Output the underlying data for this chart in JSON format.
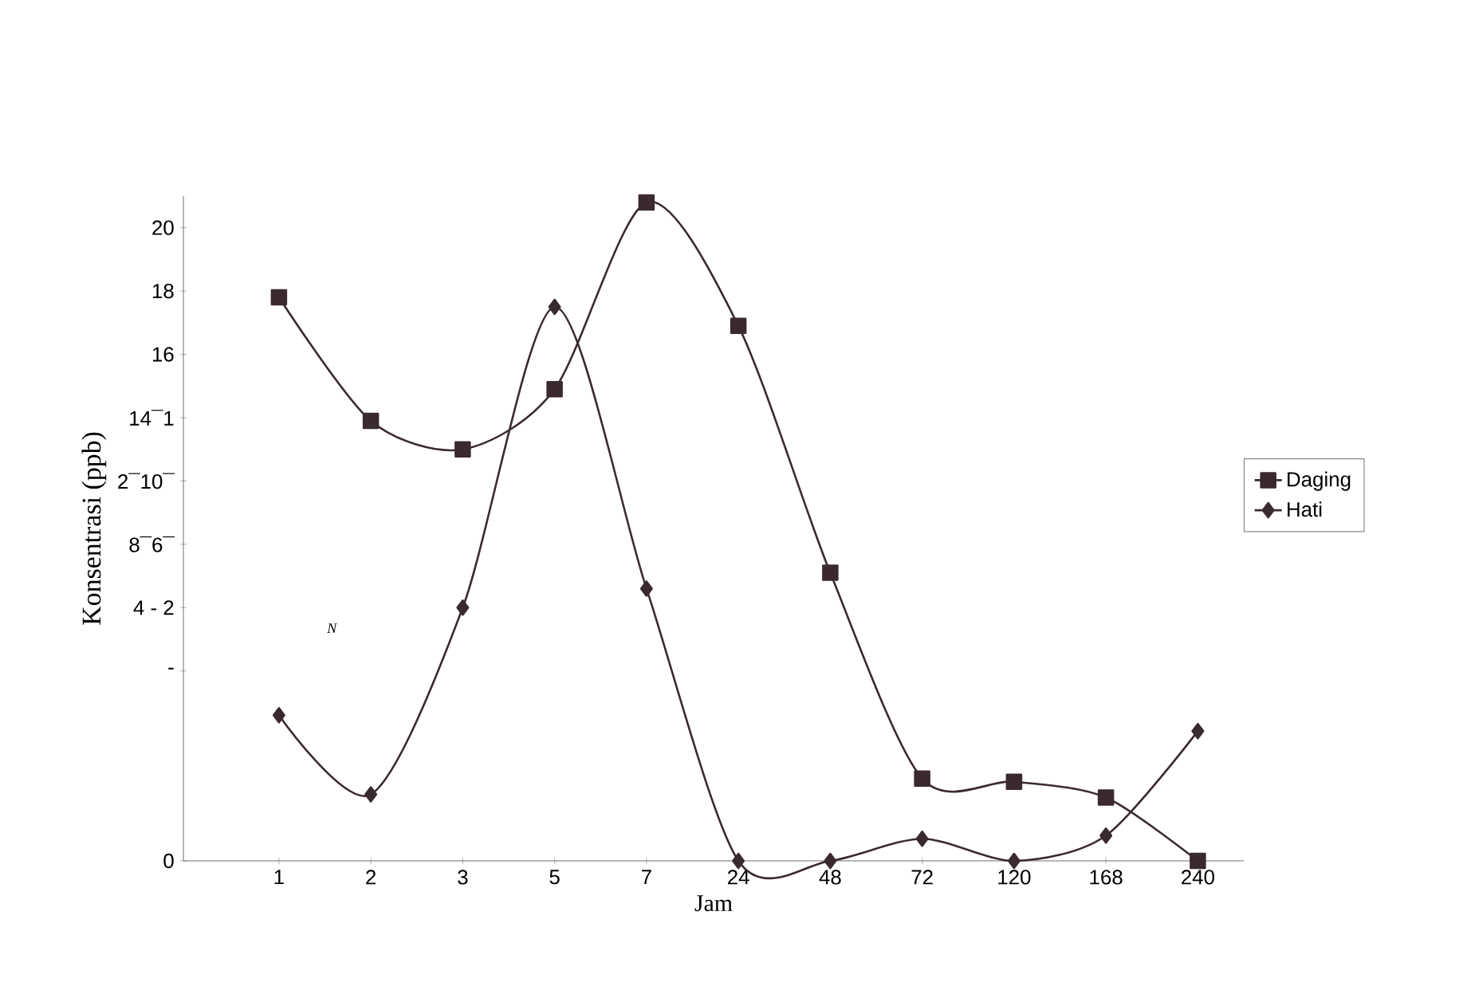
{
  "chart_data": {
    "type": "line",
    "xlabel": "Jam",
    "ylabel": "Konsentrasi (ppb)",
    "categories": [
      "1",
      "2",
      "3",
      "5",
      "7",
      "24",
      "48",
      "72",
      "120",
      "168",
      "240"
    ],
    "series": [
      {
        "name": "Daging",
        "color": "#3a2a30",
        "marker": "square",
        "values": [
          17.8,
          13.9,
          13.0,
          14.9,
          20.8,
          16.9,
          9.1,
          2.6,
          2.5,
          2.0,
          0.0
        ]
      },
      {
        "name": "Hati",
        "color": "#3a2a30",
        "marker": "diamond",
        "values": [
          4.6,
          2.1,
          8.0,
          17.5,
          8.6,
          0.0,
          0.0,
          0.7,
          0.0,
          0.8,
          4.1
        ]
      }
    ],
    "ylim": [
      0,
      21
    ],
    "yticks": [
      0,
      {
        "value": 6,
        "label": "-"
      },
      {
        "value": 8,
        "label": "4 - 2"
      },
      {
        "value": 10,
        "label": "8¯6¯"
      },
      {
        "value": 12,
        "label": "2¯10¯"
      },
      {
        "value": 14,
        "label": "14¯1"
      },
      16,
      18,
      20
    ],
    "legend": "right",
    "grid": false,
    "annotations": [
      "N"
    ]
  }
}
